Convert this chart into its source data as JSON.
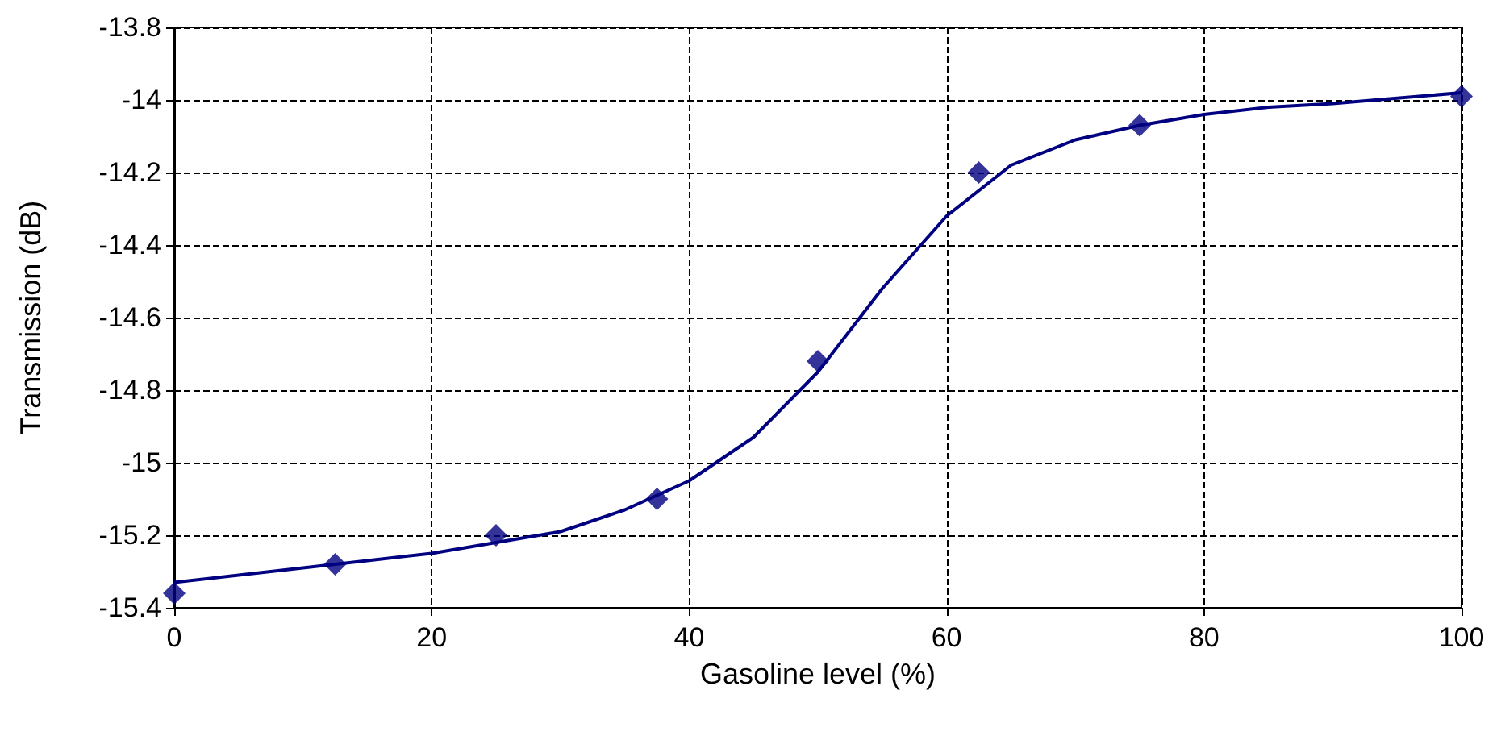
{
  "chart_data": {
    "type": "scatter",
    "xlabel": "Gasoline level (%)",
    "ylabel": "Transmission (dB)",
    "x": [
      0,
      12.5,
      25,
      37.5,
      50,
      62.5,
      75,
      100
    ],
    "series": [
      {
        "color": "#000080",
        "marker": "diamond",
        "values": [
          -15.36,
          -15.28,
          -15.2,
          -15.1,
          -14.72,
          -14.2,
          -14.07,
          -13.99
        ]
      },
      {
        "type": "line",
        "color": "#000080",
        "marker": "none",
        "line_style": "solid",
        "x": [
          0,
          5,
          10,
          15,
          20,
          25,
          30,
          35,
          40,
          45,
          50,
          55,
          60,
          65,
          70,
          75,
          80,
          85,
          90,
          95,
          100
        ],
        "values": [
          -15.33,
          -15.31,
          -15.29,
          -15.27,
          -15.25,
          -15.22,
          -15.19,
          -15.13,
          -15.05,
          -14.93,
          -14.75,
          -14.52,
          -14.32,
          -14.18,
          -14.11,
          -14.07,
          -14.04,
          -14.02,
          -14.01,
          -13.995,
          -13.98
        ]
      }
    ],
    "xlim": [
      0,
      100
    ],
    "xticks": [
      0,
      20,
      40,
      60,
      80,
      100
    ],
    "ylim": [
      -15.4,
      -13.8
    ],
    "yticks": [
      -15.4,
      -15.2,
      -15,
      -14.8,
      -14.6,
      -14.4,
      -14.2,
      -14,
      -13.8
    ],
    "grid": true
  }
}
